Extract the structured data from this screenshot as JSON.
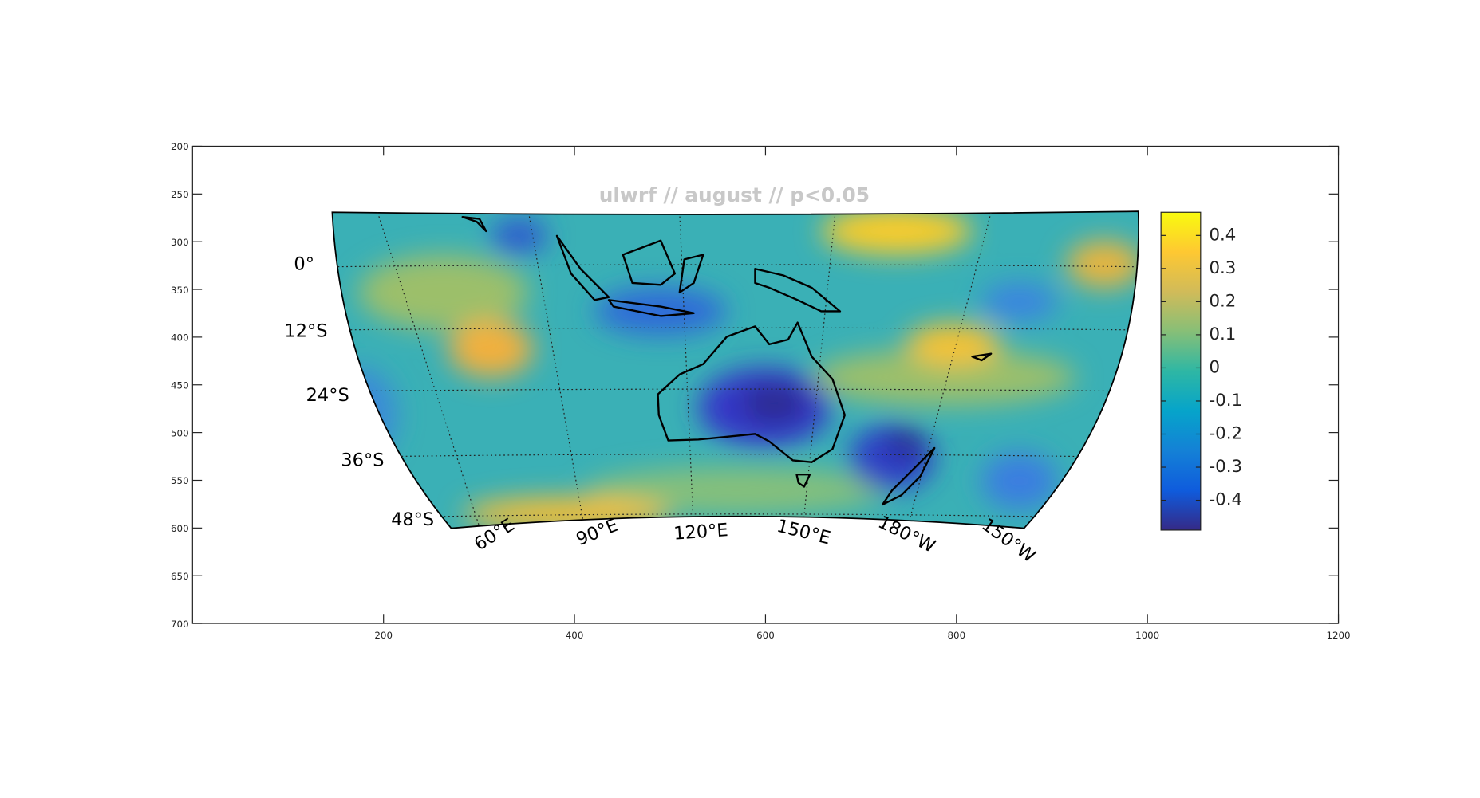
{
  "chart_data": {
    "type": "map",
    "title": "ulwrf // august // p<0.05",
    "xlim": [
      0,
      1200
    ],
    "xticks": [
      200,
      400,
      600,
      800,
      1000,
      1200
    ],
    "ylim": [
      200,
      700
    ],
    "y_reversed": true,
    "yticks": [
      200,
      250,
      300,
      350,
      400,
      450,
      500,
      550,
      600,
      650,
      700
    ],
    "colorbar": {
      "clim": [
        -0.49,
        0.47
      ],
      "colormap": "parula",
      "ticks": [
        0.4,
        0.3,
        0.2,
        0.1,
        0,
        -0.1,
        -0.2,
        -0.3,
        -0.4
      ]
    },
    "lat_labels": [
      "0°",
      "12°S",
      "24°S",
      "36°S",
      "48°S"
    ],
    "lon_labels": [
      "60°E",
      "90°E",
      "120°E",
      "150°E",
      "180°W",
      "150°W"
    ]
  }
}
